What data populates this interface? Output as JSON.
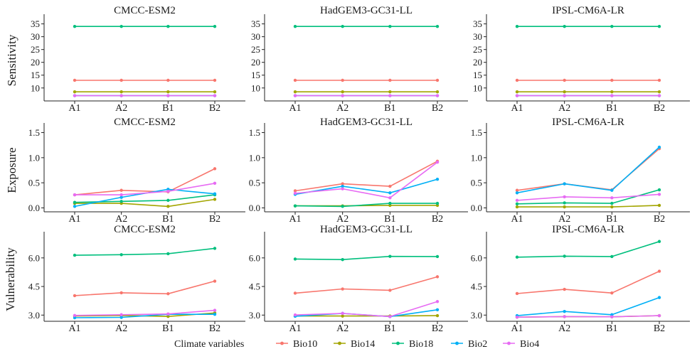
{
  "chart_data": {
    "type": "line",
    "categories": [
      "A1",
      "A2",
      "B1",
      "B2"
    ],
    "legend": {
      "title": "Climate variables",
      "position": "bottom",
      "entries": [
        "Bio10",
        "Bio14",
        "Bio18",
        "Bio2",
        "Bio4"
      ]
    },
    "colors": {
      "Bio10": "#F8766D",
      "Bio14": "#A3A500",
      "Bio18": "#00BF7D",
      "Bio2": "#00B0F6",
      "Bio4": "#E76BF3"
    },
    "grid": false,
    "rows": [
      {
        "ylabel": "Sensitivity",
        "ylim": [
          5.5,
          36
        ],
        "yticks": [
          "10",
          "15",
          "20",
          "25",
          "30",
          "35"
        ],
        "ytick_values": [
          10,
          15,
          20,
          25,
          30,
          35
        ],
        "panels": [
          {
            "title": "CMCC-ESM2",
            "series": [
              {
                "name": "Bio10",
                "values": [
                  13,
                  13,
                  13,
                  13
                ]
              },
              {
                "name": "Bio14",
                "values": [
                  8.5,
                  8.5,
                  8.5,
                  8.5
                ]
              },
              {
                "name": "Bio18",
                "values": [
                  34,
                  34,
                  34,
                  34
                ]
              },
              {
                "name": "Bio2",
                "values": [
                  7,
                  7,
                  7,
                  7
                ]
              },
              {
                "name": "Bio4",
                "values": [
                  7,
                  7,
                  7,
                  7
                ]
              }
            ]
          },
          {
            "title": "HadGEM3-GC31-LL",
            "series": [
              {
                "name": "Bio10",
                "values": [
                  13,
                  13,
                  13,
                  13
                ]
              },
              {
                "name": "Bio14",
                "values": [
                  8.5,
                  8.5,
                  8.5,
                  8.5
                ]
              },
              {
                "name": "Bio18",
                "values": [
                  34,
                  34,
                  34,
                  34
                ]
              },
              {
                "name": "Bio2",
                "values": [
                  7,
                  7,
                  7,
                  7
                ]
              },
              {
                "name": "Bio4",
                "values": [
                  7,
                  7,
                  7,
                  7
                ]
              }
            ]
          },
          {
            "title": "IPSL-CM6A-LR",
            "series": [
              {
                "name": "Bio10",
                "values": [
                  13,
                  13,
                  13,
                  13
                ]
              },
              {
                "name": "Bio14",
                "values": [
                  8.5,
                  8.5,
                  8.5,
                  8.5
                ]
              },
              {
                "name": "Bio18",
                "values": [
                  34,
                  34,
                  34,
                  34
                ]
              },
              {
                "name": "Bio2",
                "values": [
                  7,
                  7,
                  7,
                  7
                ]
              },
              {
                "name": "Bio4",
                "values": [
                  7,
                  7,
                  7,
                  7
                ]
              }
            ]
          }
        ]
      },
      {
        "ylabel": "Exposure",
        "ylim": [
          -0.05,
          1.55
        ],
        "yticks": [
          "0.0",
          "0.5",
          "1.0",
          "1.5"
        ],
        "ytick_values": [
          0,
          0.5,
          1.0,
          1.5
        ],
        "panels": [
          {
            "title": "CMCC-ESM2",
            "series": [
              {
                "name": "Bio10",
                "values": [
                  0.26,
                  0.35,
                  0.32,
                  0.78
                ]
              },
              {
                "name": "Bio14",
                "values": [
                  0.09,
                  0.09,
                  0.03,
                  0.17
                ]
              },
              {
                "name": "Bio18",
                "values": [
                  0.11,
                  0.13,
                  0.15,
                  0.26
                ]
              },
              {
                "name": "Bio2",
                "values": [
                  0.03,
                  0.21,
                  0.37,
                  0.28
                ]
              },
              {
                "name": "Bio4",
                "values": [
                  0.26,
                  0.26,
                  0.33,
                  0.49
                ]
              }
            ]
          },
          {
            "title": "HadGEM3-GC31-LL",
            "series": [
              {
                "name": "Bio10",
                "values": [
                  0.34,
                  0.48,
                  0.43,
                  0.93
                ]
              },
              {
                "name": "Bio14",
                "values": [
                  0.04,
                  0.04,
                  0.05,
                  0.05
                ]
              },
              {
                "name": "Bio18",
                "values": [
                  0.04,
                  0.03,
                  0.09,
                  0.09
                ]
              },
              {
                "name": "Bio2",
                "values": [
                  0.27,
                  0.43,
                  0.3,
                  0.57
                ]
              },
              {
                "name": "Bio4",
                "values": [
                  0.29,
                  0.38,
                  0.2,
                  0.91
                ]
              }
            ]
          },
          {
            "title": "IPSL-CM6A-LR",
            "series": [
              {
                "name": "Bio10",
                "values": [
                  0.35,
                  0.48,
                  0.36,
                  1.18
                ]
              },
              {
                "name": "Bio14",
                "values": [
                  0.02,
                  0.02,
                  0.02,
                  0.05
                ]
              },
              {
                "name": "Bio18",
                "values": [
                  0.08,
                  0.1,
                  0.09,
                  0.36
                ]
              },
              {
                "name": "Bio2",
                "values": [
                  0.3,
                  0.48,
                  0.35,
                  1.21
                ]
              },
              {
                "name": "Bio4",
                "values": [
                  0.15,
                  0.22,
                  0.2,
                  0.27
                ]
              }
            ]
          }
        ]
      },
      {
        "ylabel": "Vulnerability",
        "ylim": [
          2.75,
          7.0
        ],
        "yticks": [
          "3.0",
          "4.5",
          "6.0"
        ],
        "ytick_values": [
          3.0,
          4.5,
          6.0
        ],
        "panels": [
          {
            "title": "CMCC-ESM2",
            "series": [
              {
                "name": "Bio10",
                "values": [
                  4.02,
                  4.17,
                  4.12,
                  4.78
                ]
              },
              {
                "name": "Bio14",
                "values": [
                  2.95,
                  2.98,
                  2.93,
                  3.11
                ]
              },
              {
                "name": "Bio18",
                "values": [
                  6.14,
                  6.17,
                  6.22,
                  6.5
                ]
              },
              {
                "name": "Bio2",
                "values": [
                  2.86,
                  2.88,
                  3.04,
                  3.04
                ]
              },
              {
                "name": "Bio4",
                "values": [
                  2.98,
                  3.02,
                  3.06,
                  3.25
                ]
              }
            ]
          },
          {
            "title": "HadGEM3-GC31-LL",
            "series": [
              {
                "name": "Bio10",
                "values": [
                  4.15,
                  4.37,
                  4.3,
                  5.01
                ]
              },
              {
                "name": "Bio14",
                "values": [
                  2.95,
                  2.95,
                  2.95,
                  2.97
                ]
              },
              {
                "name": "Bio18",
                "values": [
                  5.94,
                  5.91,
                  6.08,
                  6.07
                ]
              },
              {
                "name": "Bio2",
                "values": [
                  2.94,
                  3.09,
                  2.92,
                  3.28
                ]
              },
              {
                "name": "Bio4",
                "values": [
                  3.01,
                  3.09,
                  2.92,
                  3.71
                ]
              }
            ]
          },
          {
            "title": "IPSL-CM6A-LR",
            "series": [
              {
                "name": "Bio10",
                "values": [
                  4.13,
                  4.35,
                  4.16,
                  5.3
                ]
              },
              {
                "name": "Bio14",
                "values": [
                  2.89,
                  2.92,
                  2.91,
                  2.97
                ]
              },
              {
                "name": "Bio18",
                "values": [
                  6.04,
                  6.09,
                  6.07,
                  6.86
                ]
              },
              {
                "name": "Bio2",
                "values": [
                  2.97,
                  3.19,
                  3.02,
                  3.92
                ]
              },
              {
                "name": "Bio4",
                "values": [
                  2.89,
                  2.92,
                  2.91,
                  2.97
                ]
              }
            ]
          }
        ]
      }
    ]
  }
}
